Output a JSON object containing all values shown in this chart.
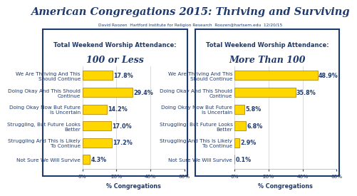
{
  "title": "American Congregations 2015: Thriving and Surviving",
  "subtitle": "David Roozen  Hartford Institute for Religion Research  Roozen@hartsem.edu  12/20/15",
  "categories": [
    "We Are Thriving And This\nShould Continue",
    "Doing Okay And This Should\nContinue",
    "Doing Okay Now But Future\nIs Uncertain",
    "Struggling, But Future Looks\nBetter",
    "Struggling And This Is Likely\nTo Continue",
    "Not Sure We Will Survive"
  ],
  "left_title_line1": "Total Weekend Worship Attendance:",
  "left_title_line2": "100 or Less",
  "right_title_line1": "Total Weekend Worship Attendance:",
  "right_title_line2": "More Than 100",
  "left_values": [
    17.8,
    29.4,
    14.2,
    17.0,
    17.2,
    4.3
  ],
  "right_values": [
    48.9,
    35.8,
    5.8,
    6.8,
    2.9,
    0.1
  ],
  "bar_color": "#FFD700",
  "bar_edge_color": "#B8860B",
  "xlabel": "% Congregations",
  "xlim": [
    0,
    60
  ],
  "xticks": [
    0,
    20,
    40,
    60
  ],
  "xticklabels": [
    "0%",
    "20%",
    "40%",
    "60%"
  ],
  "title_color": "#1F3A6E",
  "panel_border_color": "#1F3A6E",
  "background_color": "#FFFFFF",
  "label_fontsize": 5.2,
  "value_fontsize": 5.8,
  "xlabel_fontsize": 5.8,
  "xtick_fontsize": 5.2
}
